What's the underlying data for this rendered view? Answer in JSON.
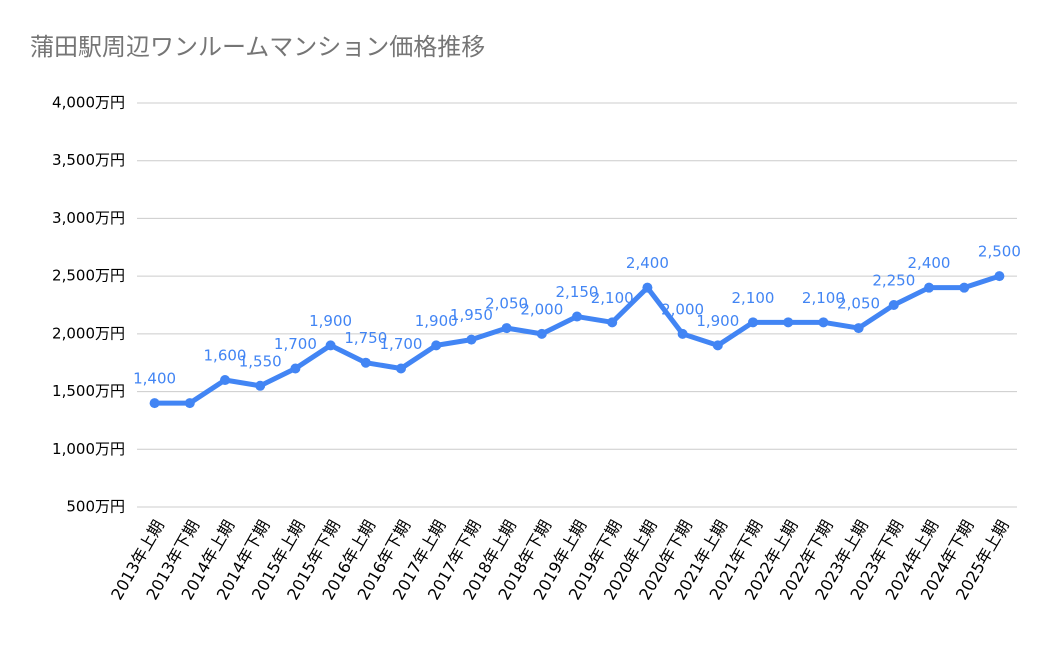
{
  "chart_data": {
    "type": "line",
    "title": "蒲田駅周辺ワンルームマンション価格推移",
    "categories": [
      "2013年上期",
      "2013年下期",
      "2014年上期",
      "2014年下期",
      "2015年上期",
      "2015年下期",
      "2016年上期",
      "2016年下期",
      "2017年上期",
      "2017年下期",
      "2018年上期",
      "2018年下期",
      "2019年上期",
      "2019年下期",
      "2020年上期",
      "2020年下期",
      "2021年上期",
      "2021年下期",
      "2022年上期",
      "2022年下期",
      "2023年上期",
      "2023年下期",
      "2024年上期",
      "2024年下期",
      "2025年上期"
    ],
    "values": [
      1400,
      1400,
      1600,
      1550,
      1700,
      1900,
      1750,
      1700,
      1900,
      1950,
      2050,
      2000,
      2150,
      2100,
      2400,
      2000,
      1900,
      2100,
      2100,
      2100,
      2050,
      2250,
      2400,
      2400,
      2500
    ],
    "value_labels": [
      "1,400",
      null,
      "1,600",
      "1,550",
      "1,700",
      "1,900",
      "1,750",
      "1,700",
      "1,900",
      "1,950",
      "2,050",
      "2,000",
      "2,150",
      "2,100",
      "2,400",
      "2,000",
      "1,900",
      "2,100",
      null,
      "2,100",
      "2,050",
      "2,250",
      "2,400",
      null,
      "2,500"
    ],
    "color": "#4285f4",
    "ylim": [
      500,
      4000
    ],
    "yticks": [
      {
        "value": 500,
        "label": "500万円"
      },
      {
        "value": 1000,
        "label": "1,000万円"
      },
      {
        "value": 1500,
        "label": "1,500万円"
      },
      {
        "value": 2000,
        "label": "2,000万円"
      },
      {
        "value": 2500,
        "label": "2,500万円"
      },
      {
        "value": 3000,
        "label": "3,000万円"
      },
      {
        "value": 3500,
        "label": "3,500万円"
      },
      {
        "value": 4000,
        "label": "4,000万円"
      }
    ],
    "grid": true
  }
}
